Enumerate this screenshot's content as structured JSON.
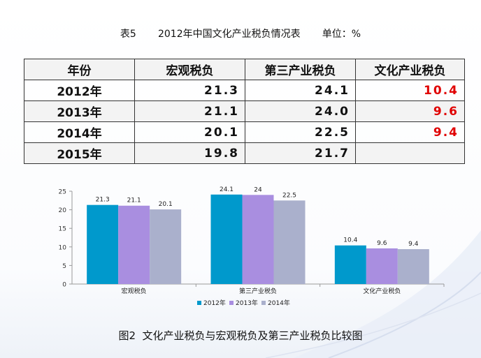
{
  "table": {
    "title": "表5       2012年中国文化产业税负情况表       单位：%",
    "headers": [
      "年份",
      "宏观税负",
      "第三产业税负",
      "文化产业税负"
    ],
    "rows": [
      {
        "year": "2012年",
        "macro": "21.3",
        "tertiary": "24.1",
        "culture": "10.4"
      },
      {
        "year": "2013年",
        "macro": "21.1",
        "tertiary": "24.0",
        "culture": "9.6"
      },
      {
        "year": "2014年",
        "macro": "20.1",
        "tertiary": "22.5",
        "culture": "9.4"
      },
      {
        "year": "2015年",
        "macro": "19.8",
        "tertiary": "21.7",
        "culture": ""
      }
    ]
  },
  "caption": "图2  文化产业税负与宏观税负及第三产业税负比较图",
  "colors": {
    "series_2012": "#0099cc",
    "series_2013": "#a98ee0",
    "series_2014": "#aab0cc",
    "highlight": "#e00000"
  },
  "chart_data": {
    "type": "bar",
    "categories": [
      "宏观税负",
      "第三产业税负",
      "文化产业税负"
    ],
    "series": [
      {
        "name": "2012年",
        "values": [
          21.3,
          24.1,
          10.4
        ],
        "labels": [
          "21.3",
          "24.1",
          "10.4"
        ]
      },
      {
        "name": "2013年",
        "values": [
          21.1,
          24,
          9.6
        ],
        "labels": [
          "21.1",
          "24",
          "9.6"
        ]
      },
      {
        "name": "2014年",
        "values": [
          20.1,
          22.5,
          9.4
        ],
        "labels": [
          "20.1",
          "22.5",
          "9.4"
        ]
      }
    ],
    "ylim": [
      0,
      25
    ],
    "yticks": [
      "0",
      "5",
      "10",
      "15",
      "20",
      "25"
    ],
    "grid": false,
    "legend": "bottom",
    "title": "",
    "xlabel": "",
    "ylabel": ""
  }
}
